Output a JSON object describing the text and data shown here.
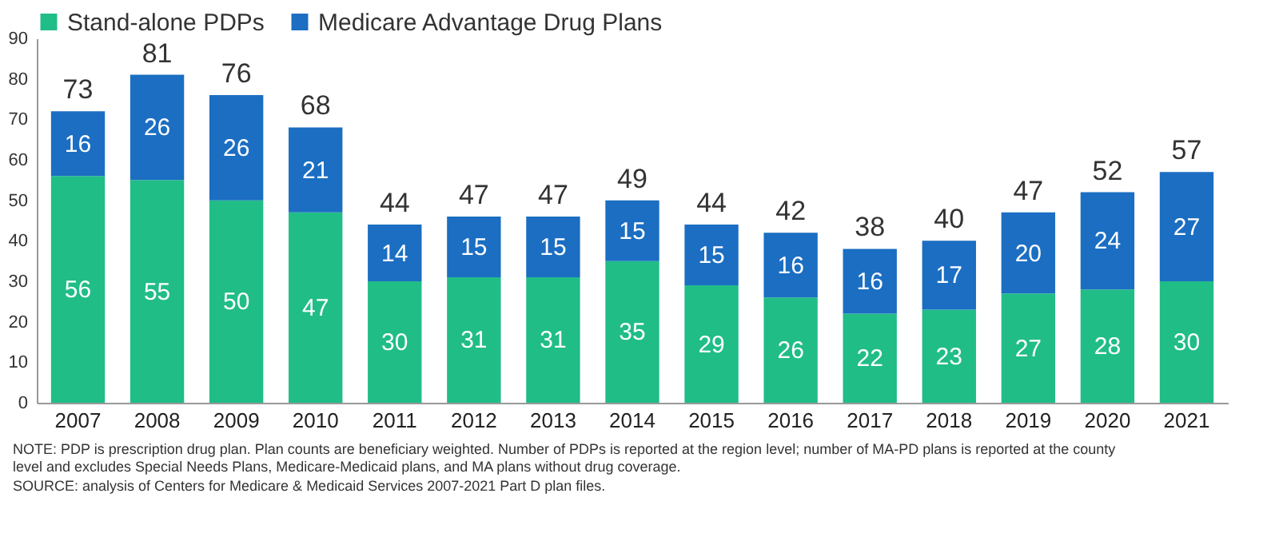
{
  "chart_data": {
    "type": "bar",
    "stacked": true,
    "data_labels": true,
    "legend": "top",
    "grid": false,
    "categories": [
      "2007",
      "2008",
      "2009",
      "2010",
      "2011",
      "2012",
      "2013",
      "2014",
      "2015",
      "2016",
      "2017",
      "2018",
      "2019",
      "2020",
      "2021"
    ],
    "series": [
      {
        "name": "Stand-alone PDPs",
        "color": "#20bd87",
        "values": [
          56,
          55,
          50,
          47,
          30,
          31,
          31,
          35,
          29,
          26,
          22,
          23,
          27,
          28,
          30
        ]
      },
      {
        "name": "Medicare Advantage Drug Plans",
        "color": "#1b6ec2",
        "values": [
          16,
          26,
          26,
          21,
          14,
          15,
          15,
          15,
          15,
          16,
          16,
          17,
          20,
          24,
          27
        ]
      }
    ],
    "totals": [
      "73",
      "81",
      "76",
      "68",
      "44",
      "47",
      "47",
      "49",
      "44",
      "42",
      "38",
      "40",
      "47",
      "52",
      "57"
    ],
    "ylim": [
      0,
      90
    ],
    "yticks": [
      0,
      10,
      20,
      30,
      40,
      50,
      60,
      70,
      80,
      90
    ],
    "annotations": [
      "NOTE: PDP is prescription drug plan. Plan counts are beneficiary weighted. Number of PDPs is reported at the region level; number of MA-PD plans is reported at the county level and excludes Special Needs Plans, Medicare-Medicaid plans, and MA plans without drug coverage.",
      "SOURCE: analysis of Centers for Medicare & Medicaid Services 2007-2021 Part D plan files."
    ]
  }
}
